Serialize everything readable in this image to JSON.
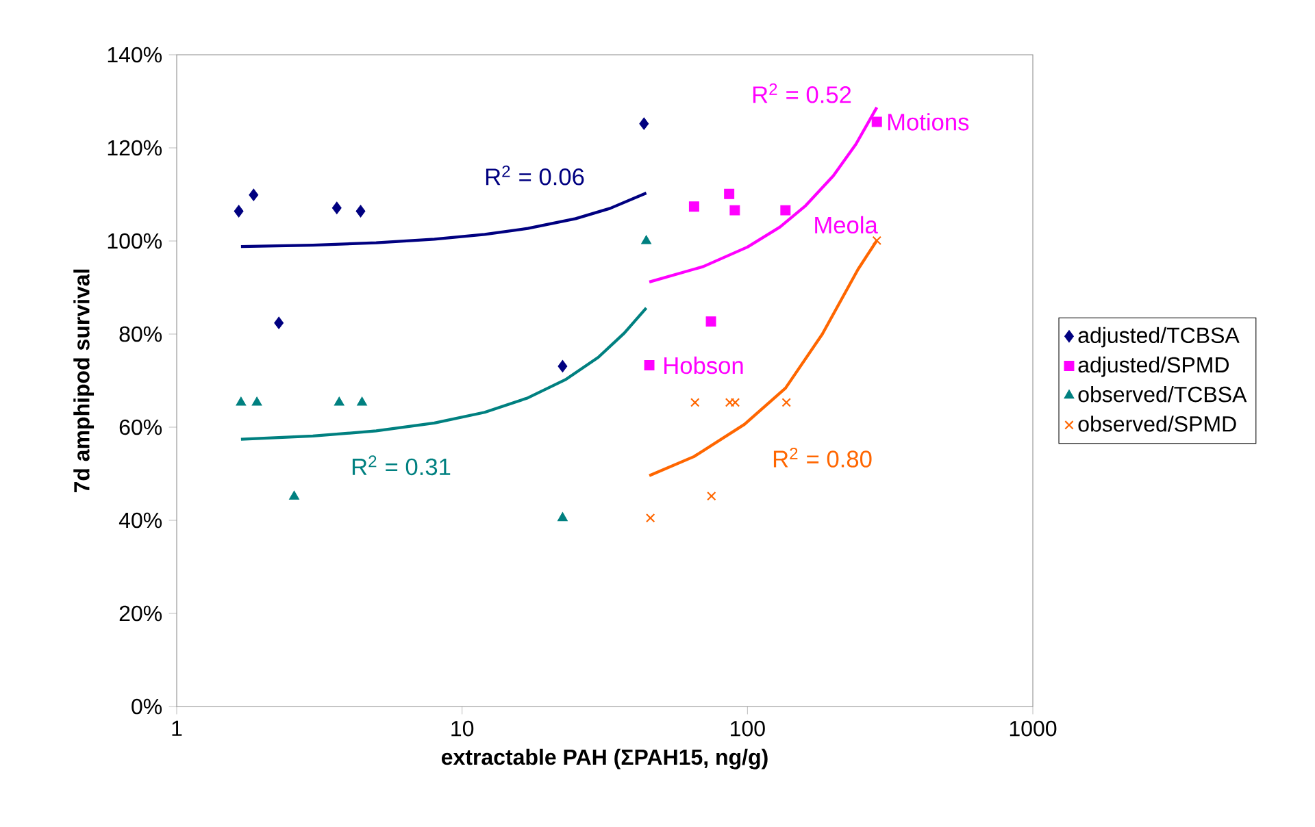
{
  "chart_data": {
    "type": "scatter",
    "xlabel": "extractable PAH (ΣPAH15, ng/g)",
    "ylabel": "7d amphipod survival",
    "log": "x",
    "xlim": [
      1,
      1000
    ],
    "xticks": [
      1,
      10,
      100,
      1000
    ],
    "ylim": [
      0,
      140
    ],
    "yticks": [
      {
        "value": 0,
        "label": "0%"
      },
      {
        "value": 20,
        "label": "20%"
      },
      {
        "value": 40,
        "label": "40%"
      },
      {
        "value": 60,
        "label": "60%"
      },
      {
        "value": 80,
        "label": "80%"
      },
      {
        "value": 100,
        "label": "100%"
      },
      {
        "value": 120,
        "label": "120%"
      },
      {
        "value": 140,
        "label": "140%"
      }
    ],
    "grid": false,
    "legend": "right",
    "series": [
      {
        "name": "adjusted/TCBSA",
        "marker": "diamond",
        "color": "#000080",
        "x": [
          1.65,
          1.86,
          2.28,
          3.64,
          4.41,
          22.5,
          43.4
        ],
        "values": [
          106.4,
          109.9,
          82.4,
          107.1,
          106.4,
          73.1,
          125.2
        ]
      },
      {
        "name": "adjusted/SPMD",
        "marker": "square",
        "color": "#ff00ff",
        "x": [
          65,
          86.3,
          90.3,
          135.9,
          284,
          74.5,
          45.3
        ],
        "values": [
          107.4,
          110.1,
          106.6,
          106.6,
          125.6,
          82.7,
          73.3
        ]
      },
      {
        "name": "observed/TCBSA",
        "marker": "triangle",
        "color": "#008080",
        "x": [
          1.68,
          1.91,
          3.71,
          4.46,
          2.58,
          22.5,
          44.2
        ],
        "values": [
          65.3,
          65.3,
          65.3,
          65.3,
          45.1,
          40.5,
          100
        ]
      },
      {
        "name": "observed/SPMD",
        "marker": "cross",
        "color": "#ff6600",
        "x": [
          65.5,
          86.7,
          90.6,
          136.9,
          74.8,
          45.7,
          284
        ],
        "values": [
          65.3,
          65.3,
          65.3,
          65.3,
          45.2,
          40.5,
          100.1
        ]
      },
      {
        "type": "line",
        "marker": "none",
        "color": "#000080",
        "x": [
          1.68,
          3,
          5,
          8,
          12,
          17,
          25,
          33,
          44.2
        ],
        "values": [
          98.8,
          99.1,
          99.6,
          100.4,
          101.4,
          102.7,
          104.8,
          107.0,
          110.3
        ]
      },
      {
        "type": "line",
        "marker": "none",
        "color": "#ff00ff",
        "x": [
          45.3,
          70,
          100,
          130,
          160,
          200,
          240,
          284
        ],
        "values": [
          91.2,
          94.5,
          98.7,
          103.0,
          107.6,
          114.0,
          120.8,
          128.7
        ]
      },
      {
        "type": "line",
        "marker": "none",
        "color": "#008080",
        "x": [
          1.68,
          3,
          5,
          8,
          12,
          17,
          23,
          30,
          37,
          44.2
        ],
        "values": [
          57.4,
          58.1,
          59.2,
          60.9,
          63.2,
          66.3,
          70.2,
          75.0,
          80.2,
          85.6
        ]
      },
      {
        "type": "line",
        "marker": "none",
        "color": "#ff6600",
        "x": [
          45.3,
          65,
          97.6,
          136,
          183,
          244,
          284
        ],
        "values": [
          49.6,
          53.7,
          60.6,
          68.4,
          80.0,
          93.9,
          100.1
        ]
      }
    ],
    "annotations": [
      "R$^{2}$ = 0.06",
      "R$^{2}$ = 0.52",
      "R$^{2}$ = 0.31",
      "R$^{2}$ = 0.80",
      {
        "text": "Motions",
        "x": 284,
        "y": 125.6
      },
      {
        "text": "Meola",
        "x": 135.9,
        "y": 106.6
      },
      {
        "text": "Hobson",
        "x": 45.3,
        "y": 73.3
      }
    ]
  }
}
